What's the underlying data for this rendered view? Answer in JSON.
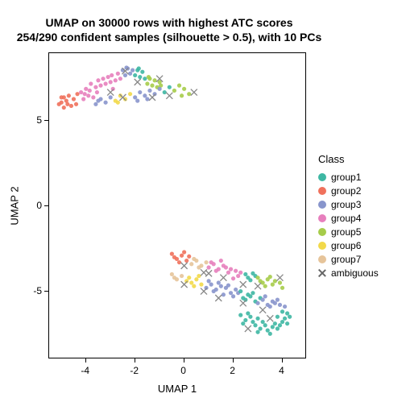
{
  "chart": {
    "type": "scatter",
    "title_line1": "UMAP on 30000 rows with highest ATC scores",
    "title_line2": "254/290 confident samples (silhouette > 0.5), with 10 PCs",
    "title_fontsize": 14,
    "title_fontweight": "bold",
    "xlabel": "UMAP 1",
    "ylabel": "UMAP 2",
    "label_fontsize": 13,
    "tick_fontsize": 12,
    "background_color": "#ffffff",
    "border_color": "#000000",
    "xlim": [
      -5.5,
      5.0
    ],
    "ylim": [
      -9.0,
      9.0
    ],
    "xticks": [
      -4,
      -2,
      0,
      2,
      4
    ],
    "yticks": [
      -5,
      0,
      5
    ],
    "marker_radius": 2.6,
    "marker_opacity": 0.9,
    "cross_size": 4,
    "cross_stroke": 1.3,
    "cross_color": "#888888",
    "legend": {
      "title": "Class",
      "items": [
        {
          "label": "group1",
          "color": "#3eb7a3"
        },
        {
          "label": "group2",
          "color": "#f0715c"
        },
        {
          "label": "group3",
          "color": "#8895cc"
        },
        {
          "label": "group4",
          "color": "#e77fbd"
        },
        {
          "label": "group5",
          "color": "#a6cc4a"
        },
        {
          "label": "group6",
          "color": "#f2d94a"
        },
        {
          "label": "group7",
          "color": "#e6c49a"
        },
        {
          "label": "ambiguous",
          "marker": "cross"
        }
      ]
    },
    "points": [
      {
        "x": -5.1,
        "y": 6.0,
        "g": 1
      },
      {
        "x": -5.0,
        "y": 6.4,
        "g": 1
      },
      {
        "x": -4.9,
        "y": 5.8,
        "g": 1
      },
      {
        "x": -4.8,
        "y": 6.2,
        "g": 1
      },
      {
        "x": -4.7,
        "y": 6.5,
        "g": 1
      },
      {
        "x": -4.6,
        "y": 5.9,
        "g": 1
      },
      {
        "x": -4.5,
        "y": 6.3,
        "g": 1
      },
      {
        "x": -4.4,
        "y": 6.0,
        "g": 1
      },
      {
        "x": -4.35,
        "y": 6.6,
        "g": 1
      },
      {
        "x": -5.0,
        "y": 6.1,
        "g": 1
      },
      {
        "x": -4.9,
        "y": 6.4,
        "g": 1
      },
      {
        "x": -4.75,
        "y": 6.0,
        "g": 1
      },
      {
        "x": -4.2,
        "y": 6.7,
        "g": 3
      },
      {
        "x": -4.1,
        "y": 6.3,
        "g": 3
      },
      {
        "x": -4.0,
        "y": 6.9,
        "g": 3
      },
      {
        "x": -3.9,
        "y": 6.5,
        "g": 3
      },
      {
        "x": -3.85,
        "y": 6.8,
        "g": 3
      },
      {
        "x": -3.7,
        "y": 6.4,
        "g": 3
      },
      {
        "x": -3.8,
        "y": 7.2,
        "g": 3
      },
      {
        "x": -3.6,
        "y": 7.0,
        "g": 3
      },
      {
        "x": -3.5,
        "y": 7.4,
        "g": 3
      },
      {
        "x": -3.4,
        "y": 7.1,
        "g": 3
      },
      {
        "x": -3.3,
        "y": 7.5,
        "g": 3
      },
      {
        "x": -3.2,
        "y": 7.2,
        "g": 3
      },
      {
        "x": -3.1,
        "y": 7.6,
        "g": 3
      },
      {
        "x": -3.0,
        "y": 7.3,
        "g": 3
      },
      {
        "x": -2.95,
        "y": 7.7,
        "g": 3
      },
      {
        "x": -2.8,
        "y": 7.4,
        "g": 3
      },
      {
        "x": -2.7,
        "y": 7.8,
        "g": 3
      },
      {
        "x": -2.9,
        "y": 6.9,
        "g": 3
      },
      {
        "x": -4.05,
        "y": 6.6,
        "g": 3
      },
      {
        "x": -3.55,
        "y": 6.7,
        "g": 3
      },
      {
        "x": -2.6,
        "y": 7.5,
        "g": 3
      },
      {
        "x": -2.5,
        "y": 8.0,
        "g": 2
      },
      {
        "x": -2.4,
        "y": 7.7,
        "g": 2
      },
      {
        "x": -2.3,
        "y": 8.1,
        "g": 2
      },
      {
        "x": -2.2,
        "y": 7.8,
        "g": 2
      },
      {
        "x": -2.35,
        "y": 8.15,
        "g": 2
      },
      {
        "x": -2.1,
        "y": 8.0,
        "g": 2
      },
      {
        "x": -2.0,
        "y": 7.7,
        "g": 0
      },
      {
        "x": -1.9,
        "y": 8.0,
        "g": 0
      },
      {
        "x": -1.8,
        "y": 7.6,
        "g": 0
      },
      {
        "x": -1.7,
        "y": 7.9,
        "g": 0
      },
      {
        "x": -1.85,
        "y": 8.1,
        "g": 0
      },
      {
        "x": -1.6,
        "y": 7.5,
        "g": 0
      },
      {
        "x": -1.5,
        "y": 7.2,
        "g": 4
      },
      {
        "x": -1.4,
        "y": 7.5,
        "g": 4
      },
      {
        "x": -1.3,
        "y": 7.1,
        "g": 4
      },
      {
        "x": -1.2,
        "y": 7.4,
        "g": 4
      },
      {
        "x": -1.1,
        "y": 7.0,
        "g": 4
      },
      {
        "x": -1.0,
        "y": 7.3,
        "g": 4
      },
      {
        "x": -1.45,
        "y": 7.6,
        "g": 4
      },
      {
        "x": -0.95,
        "y": 7.1,
        "g": 4
      },
      {
        "x": -3.6,
        "y": 6.0,
        "g": 2
      },
      {
        "x": -3.4,
        "y": 6.3,
        "g": 2
      },
      {
        "x": -3.2,
        "y": 6.1,
        "g": 2
      },
      {
        "x": -3.0,
        "y": 6.4,
        "g": 2
      },
      {
        "x": -3.5,
        "y": 6.2,
        "g": 2
      },
      {
        "x": -2.8,
        "y": 6.2,
        "g": 5
      },
      {
        "x": -2.6,
        "y": 6.5,
        "g": 5
      },
      {
        "x": -2.4,
        "y": 6.3,
        "g": 5
      },
      {
        "x": -2.2,
        "y": 6.6,
        "g": 5
      },
      {
        "x": -2.7,
        "y": 6.1,
        "g": 5
      },
      {
        "x": -2.0,
        "y": 6.4,
        "g": 2
      },
      {
        "x": -1.8,
        "y": 6.7,
        "g": 2
      },
      {
        "x": -1.6,
        "y": 6.5,
        "g": 2
      },
      {
        "x": -1.4,
        "y": 6.8,
        "g": 2
      },
      {
        "x": -1.2,
        "y": 6.6,
        "g": 2
      },
      {
        "x": -1.0,
        "y": 6.9,
        "g": 2
      },
      {
        "x": -0.8,
        "y": 6.7,
        "g": 0
      },
      {
        "x": -0.6,
        "y": 7.0,
        "g": 0
      },
      {
        "x": -1.9,
        "y": 6.2,
        "g": 2
      },
      {
        "x": -1.5,
        "y": 6.3,
        "g": 2
      },
      {
        "x": -0.4,
        "y": 6.8,
        "g": 4
      },
      {
        "x": -0.2,
        "y": 7.1,
        "g": 4
      },
      {
        "x": 0.0,
        "y": 6.9,
        "g": 4
      },
      {
        "x": 0.2,
        "y": 6.6,
        "g": 4
      },
      {
        "x": -0.1,
        "y": 6.5,
        "g": 4
      },
      {
        "x": -2.4,
        "y": 7.95,
        "g": "x"
      },
      {
        "x": -1.9,
        "y": 7.3,
        "g": "x"
      },
      {
        "x": -1.0,
        "y": 7.5,
        "g": "x"
      },
      {
        "x": -3.0,
        "y": 6.7,
        "g": "x"
      },
      {
        "x": -1.3,
        "y": 6.4,
        "g": "x"
      },
      {
        "x": 0.4,
        "y": 6.7,
        "g": "x"
      },
      {
        "x": -2.5,
        "y": 6.4,
        "g": "x"
      },
      {
        "x": -0.6,
        "y": 6.5,
        "g": "x"
      },
      {
        "x": -0.5,
        "y": -2.8,
        "g": 1
      },
      {
        "x": -0.3,
        "y": -3.1,
        "g": 1
      },
      {
        "x": -0.1,
        "y": -2.9,
        "g": 1
      },
      {
        "x": 0.1,
        "y": -3.2,
        "g": 1
      },
      {
        "x": -0.4,
        "y": -3.0,
        "g": 1
      },
      {
        "x": 0.0,
        "y": -2.7,
        "g": 1
      },
      {
        "x": -0.2,
        "y": -3.3,
        "g": 1
      },
      {
        "x": 0.2,
        "y": -2.95,
        "g": 1
      },
      {
        "x": 0.3,
        "y": -3.4,
        "g": 6
      },
      {
        "x": 0.5,
        "y": -3.2,
        "g": 6
      },
      {
        "x": 0.7,
        "y": -3.5,
        "g": 6
      },
      {
        "x": 0.9,
        "y": -3.3,
        "g": 6
      },
      {
        "x": 0.4,
        "y": -3.1,
        "g": 6
      },
      {
        "x": 0.6,
        "y": -3.6,
        "g": 6
      },
      {
        "x": 1.0,
        "y": -3.6,
        "g": 3
      },
      {
        "x": 1.2,
        "y": -3.4,
        "g": 3
      },
      {
        "x": 1.4,
        "y": -3.7,
        "g": 3
      },
      {
        "x": 1.6,
        "y": -3.5,
        "g": 3
      },
      {
        "x": 1.1,
        "y": -3.3,
        "g": 3
      },
      {
        "x": 1.3,
        "y": -3.8,
        "g": 3
      },
      {
        "x": 1.5,
        "y": -3.2,
        "g": 3
      },
      {
        "x": 1.7,
        "y": -3.6,
        "g": 3
      },
      {
        "x": 1.8,
        "y": -3.9,
        "g": 3
      },
      {
        "x": 1.9,
        "y": -3.7,
        "g": 3
      },
      {
        "x": 2.0,
        "y": -4.25,
        "g": 3
      },
      {
        "x": 2.1,
        "y": -3.8,
        "g": 3
      },
      {
        "x": 2.2,
        "y": -4.1,
        "g": 3
      },
      {
        "x": 2.3,
        "y": -3.9,
        "g": 3
      },
      {
        "x": 2.5,
        "y": -4.0,
        "g": 0
      },
      {
        "x": 2.7,
        "y": -4.35,
        "g": 0
      },
      {
        "x": 2.9,
        "y": -4.1,
        "g": 0
      },
      {
        "x": 2.6,
        "y": -4.2,
        "g": 0
      },
      {
        "x": 2.8,
        "y": -3.95,
        "g": 0
      },
      {
        "x": 3.0,
        "y": -4.2,
        "g": 4
      },
      {
        "x": 3.2,
        "y": -4.5,
        "g": 4
      },
      {
        "x": 3.4,
        "y": -4.3,
        "g": 4
      },
      {
        "x": 3.6,
        "y": -4.6,
        "g": 4
      },
      {
        "x": 3.1,
        "y": -4.4,
        "g": 4
      },
      {
        "x": 3.5,
        "y": -4.15,
        "g": 4
      },
      {
        "x": 3.3,
        "y": -4.7,
        "g": 4
      },
      {
        "x": 3.7,
        "y": -4.4,
        "g": 4
      },
      {
        "x": 3.9,
        "y": -4.5,
        "g": 4
      },
      {
        "x": 4.0,
        "y": -4.8,
        "g": 4
      },
      {
        "x": -0.5,
        "y": -4.0,
        "g": 6
      },
      {
        "x": -0.3,
        "y": -4.3,
        "g": 6
      },
      {
        "x": -0.1,
        "y": -4.1,
        "g": 6
      },
      {
        "x": 0.1,
        "y": -4.4,
        "g": 5
      },
      {
        "x": -0.4,
        "y": -4.2,
        "g": 6
      },
      {
        "x": 0.3,
        "y": -4.5,
        "g": 5
      },
      {
        "x": 0.5,
        "y": -4.3,
        "g": 5
      },
      {
        "x": 0.7,
        "y": -4.6,
        "g": 5
      },
      {
        "x": 0.2,
        "y": -4.2,
        "g": 5
      },
      {
        "x": 0.4,
        "y": -4.7,
        "g": 5
      },
      {
        "x": 0.6,
        "y": -4.1,
        "g": 5
      },
      {
        "x": 0.9,
        "y": -4.8,
        "g": 2
      },
      {
        "x": 1.1,
        "y": -4.6,
        "g": 2
      },
      {
        "x": 1.3,
        "y": -4.9,
        "g": 2
      },
      {
        "x": 1.5,
        "y": -4.7,
        "g": 2
      },
      {
        "x": 1.0,
        "y": -4.4,
        "g": 2
      },
      {
        "x": 1.2,
        "y": -5.0,
        "g": 2
      },
      {
        "x": 1.4,
        "y": -4.5,
        "g": 2
      },
      {
        "x": 1.7,
        "y": -4.8,
        "g": 2
      },
      {
        "x": 1.9,
        "y": -5.1,
        "g": 2
      },
      {
        "x": 2.1,
        "y": -4.9,
        "g": 2
      },
      {
        "x": 1.6,
        "y": -5.2,
        "g": 2
      },
      {
        "x": 1.8,
        "y": -4.65,
        "g": 2
      },
      {
        "x": 2.0,
        "y": -5.3,
        "g": 2
      },
      {
        "x": 2.2,
        "y": -5.1,
        "g": 2
      },
      {
        "x": 2.4,
        "y": -5.4,
        "g": 0
      },
      {
        "x": 2.6,
        "y": -5.2,
        "g": 0
      },
      {
        "x": 2.3,
        "y": -5.0,
        "g": 0
      },
      {
        "x": 2.5,
        "y": -5.5,
        "g": 0
      },
      {
        "x": 2.7,
        "y": -5.3,
        "g": 0
      },
      {
        "x": 2.9,
        "y": -5.6,
        "g": 0
      },
      {
        "x": 3.1,
        "y": -5.4,
        "g": 0
      },
      {
        "x": 2.8,
        "y": -5.1,
        "g": 0
      },
      {
        "x": 3.0,
        "y": -5.7,
        "g": 2
      },
      {
        "x": 3.2,
        "y": -5.5,
        "g": 2
      },
      {
        "x": 3.4,
        "y": -5.8,
        "g": 2
      },
      {
        "x": 3.6,
        "y": -5.6,
        "g": 2
      },
      {
        "x": 3.3,
        "y": -5.3,
        "g": 2
      },
      {
        "x": 3.5,
        "y": -5.9,
        "g": 2
      },
      {
        "x": 3.7,
        "y": -5.7,
        "g": 2
      },
      {
        "x": 3.9,
        "y": -5.8,
        "g": 2
      },
      {
        "x": 4.1,
        "y": -5.9,
        "g": 2
      },
      {
        "x": 3.8,
        "y": -5.5,
        "g": 2
      },
      {
        "x": 2.3,
        "y": -6.4,
        "g": 0
      },
      {
        "x": 2.5,
        "y": -6.7,
        "g": 0
      },
      {
        "x": 2.7,
        "y": -6.5,
        "g": 0
      },
      {
        "x": 2.4,
        "y": -6.9,
        "g": 0
      },
      {
        "x": 2.6,
        "y": -6.3,
        "g": 0
      },
      {
        "x": 2.8,
        "y": -6.8,
        "g": 0
      },
      {
        "x": 3.0,
        "y": -6.6,
        "g": 0
      },
      {
        "x": 2.9,
        "y": -7.0,
        "g": 0
      },
      {
        "x": 3.1,
        "y": -7.2,
        "g": 0
      },
      {
        "x": 3.3,
        "y": -7.0,
        "g": 0
      },
      {
        "x": 3.0,
        "y": -7.4,
        "g": 0
      },
      {
        "x": 3.2,
        "y": -6.8,
        "g": 0
      },
      {
        "x": 3.4,
        "y": -7.3,
        "g": 0
      },
      {
        "x": 3.6,
        "y": -7.1,
        "g": 0
      },
      {
        "x": 3.5,
        "y": -7.5,
        "g": 0
      },
      {
        "x": 3.7,
        "y": -6.9,
        "g": 0
      },
      {
        "x": 3.8,
        "y": -7.2,
        "g": 0
      },
      {
        "x": 3.9,
        "y": -7.0,
        "g": 0
      },
      {
        "x": 4.1,
        "y": -6.6,
        "g": 0
      },
      {
        "x": 3.8,
        "y": -6.5,
        "g": 0
      },
      {
        "x": 4.0,
        "y": -6.8,
        "g": 0
      },
      {
        "x": 4.2,
        "y": -6.3,
        "g": 0
      },
      {
        "x": 4.2,
        "y": -6.9,
        "g": 0
      },
      {
        "x": 4.0,
        "y": -6.2,
        "g": 0
      },
      {
        "x": 4.3,
        "y": -6.5,
        "g": 0
      },
      {
        "x": 0.0,
        "y": -3.5,
        "g": "x"
      },
      {
        "x": 0.8,
        "y": -3.9,
        "g": "x"
      },
      {
        "x": 1.6,
        "y": -4.2,
        "g": "x"
      },
      {
        "x": 2.4,
        "y": -4.6,
        "g": "x"
      },
      {
        "x": 0.0,
        "y": -4.6,
        "g": "x"
      },
      {
        "x": 0.8,
        "y": -5.0,
        "g": "x"
      },
      {
        "x": 1.4,
        "y": -5.4,
        "g": "x"
      },
      {
        "x": 2.4,
        "y": -5.7,
        "g": "x"
      },
      {
        "x": 3.2,
        "y": -6.1,
        "g": "x"
      },
      {
        "x": 2.6,
        "y": -7.2,
        "g": "x"
      },
      {
        "x": 3.5,
        "y": -6.6,
        "g": "x"
      },
      {
        "x": 3.9,
        "y": -4.2,
        "g": "x"
      },
      {
        "x": 3.0,
        "y": -4.7,
        "g": "x"
      },
      {
        "x": 1.0,
        "y": -3.95,
        "g": "x"
      }
    ]
  }
}
